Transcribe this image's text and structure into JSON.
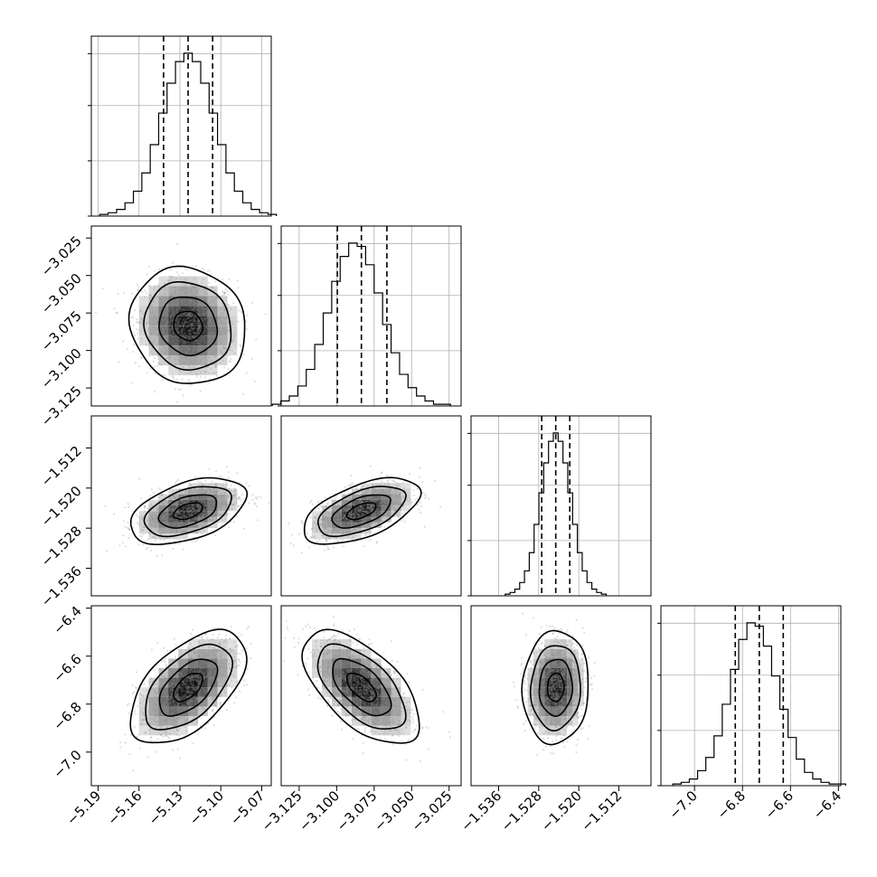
{
  "chart_data": {
    "type": "scatter",
    "subtype": "corner-plot",
    "title": "",
    "n_params": 4,
    "parameters": [
      {
        "label": "",
        "range": [
          -5.195,
          -5.063
        ],
        "median": -5.124,
        "q16": -5.142,
        "q84": -5.106,
        "ticks": [
          -5.19,
          -5.16,
          -5.13,
          -5.1,
          -5.07
        ],
        "tick_labels": [
          "−5.19",
          "−5.16",
          "−5.13",
          "−5.10",
          "−5.07"
        ]
      },
      {
        "label": "",
        "range": [
          -3.137,
          -3.017
        ],
        "median": -3.0835,
        "q16": -3.0995,
        "q84": -3.0665,
        "ticks": [
          -3.125,
          -3.1,
          -3.075,
          -3.05,
          -3.025
        ],
        "tick_labels": [
          "−3.125",
          "−3.100",
          "−3.075",
          "−3.050",
          "−3.025"
        ]
      },
      {
        "label": "",
        "range": [
          -1.5415,
          -1.5056
        ],
        "median": -1.5246,
        "q16": -1.5274,
        "q84": -1.5218,
        "ticks": [
          -1.536,
          -1.528,
          -1.52,
          -1.512
        ],
        "tick_labels": [
          "−1.536",
          "−1.528",
          "−1.520",
          "−1.512"
        ]
      },
      {
        "label": "",
        "range": [
          -7.14,
          -6.39
        ],
        "median": -6.73,
        "q16": -6.83,
        "q84": -6.63,
        "ticks": [
          -7.0,
          -6.8,
          -6.6,
          -6.4
        ],
        "tick_labels": [
          "−7.0",
          "−6.8",
          "−6.6",
          "−6.4"
        ]
      }
    ],
    "histograms": [
      [
        1,
        2,
        4,
        8,
        15,
        26,
        43,
        62,
        80,
        93,
        98,
        93,
        80,
        62,
        43,
        26,
        15,
        8,
        4,
        2,
        1
      ],
      [
        1,
        3,
        6,
        12,
        22,
        37,
        56,
        75,
        90,
        98,
        96,
        85,
        68,
        49,
        32,
        19,
        11,
        6,
        3,
        1,
        1
      ],
      [
        1,
        2,
        4,
        8,
        15,
        26,
        43,
        62,
        80,
        93,
        98,
        93,
        80,
        62,
        43,
        26,
        15,
        8,
        4,
        2,
        1
      ],
      [
        1,
        2,
        4,
        9,
        17,
        30,
        49,
        70,
        88,
        98,
        96,
        84,
        66,
        46,
        29,
        16,
        8,
        4,
        2,
        1,
        1
      ]
    ],
    "correlations": [
      [
        1.0,
        -0.1,
        0.45,
        0.55
      ],
      [
        -0.1,
        1.0,
        0.55,
        -0.6
      ],
      [
        0.45,
        0.55,
        1.0,
        0.05
      ],
      [
        0.55,
        -0.6,
        0.05,
        1.0
      ]
    ],
    "contour_levels_sigma": [
      0.5,
      1.0,
      1.5,
      2.0
    ],
    "grid": true,
    "quantile_lines": "dashed"
  }
}
